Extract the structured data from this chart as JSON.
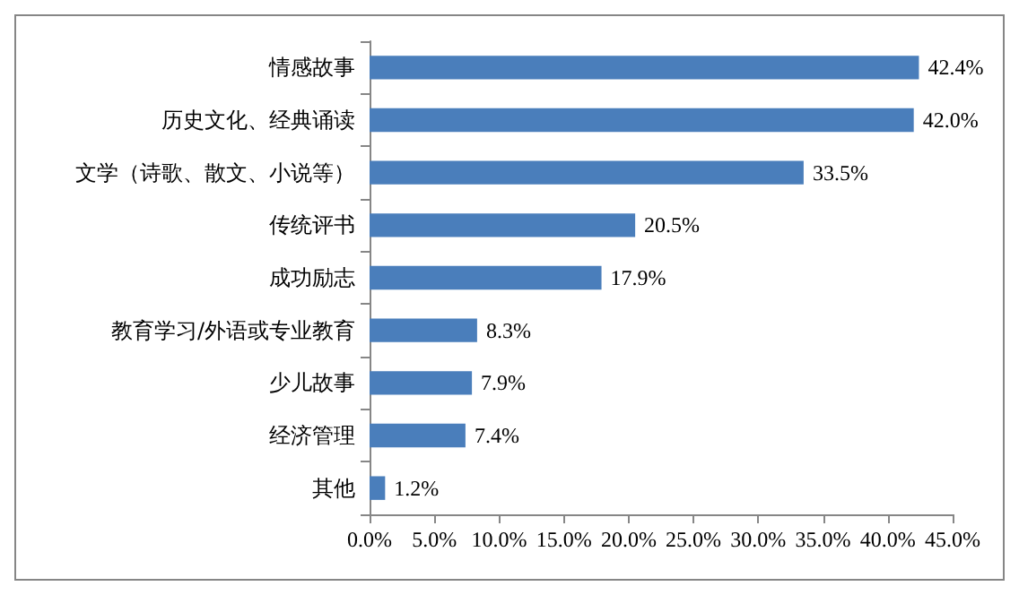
{
  "chart_data": {
    "type": "bar",
    "orientation": "horizontal",
    "categories": [
      "情感故事",
      "历史文化、经典诵读",
      "文学（诗歌、散文、小说等）",
      "传统评书",
      "成功励志",
      "教育学习/外语或专业教育",
      "少儿故事",
      "经济管理",
      "其他"
    ],
    "values": [
      42.4,
      42.0,
      33.5,
      20.5,
      17.9,
      8.3,
      7.9,
      7.4,
      1.2
    ],
    "value_labels": [
      "42.4%",
      "42.0%",
      "33.5%",
      "20.5%",
      "17.9%",
      "8.3%",
      "7.9%",
      "7.4%",
      "1.2%"
    ],
    "color": "#4a7ebb",
    "xlim": [
      0,
      45
    ],
    "xticks": [
      {
        "value": 0,
        "label": "0.0%"
      },
      {
        "value": 5,
        "label": "5.0%"
      },
      {
        "value": 10,
        "label": "10.0%"
      },
      {
        "value": 15,
        "label": "15.0%"
      },
      {
        "value": 20,
        "label": "20.0%"
      },
      {
        "value": 25,
        "label": "25.0%"
      },
      {
        "value": 30,
        "label": "30.0%"
      },
      {
        "value": 35,
        "label": "35.0%"
      },
      {
        "value": 40,
        "label": "40.0%"
      },
      {
        "value": 45,
        "label": "45.0%"
      }
    ],
    "grid": false
  }
}
